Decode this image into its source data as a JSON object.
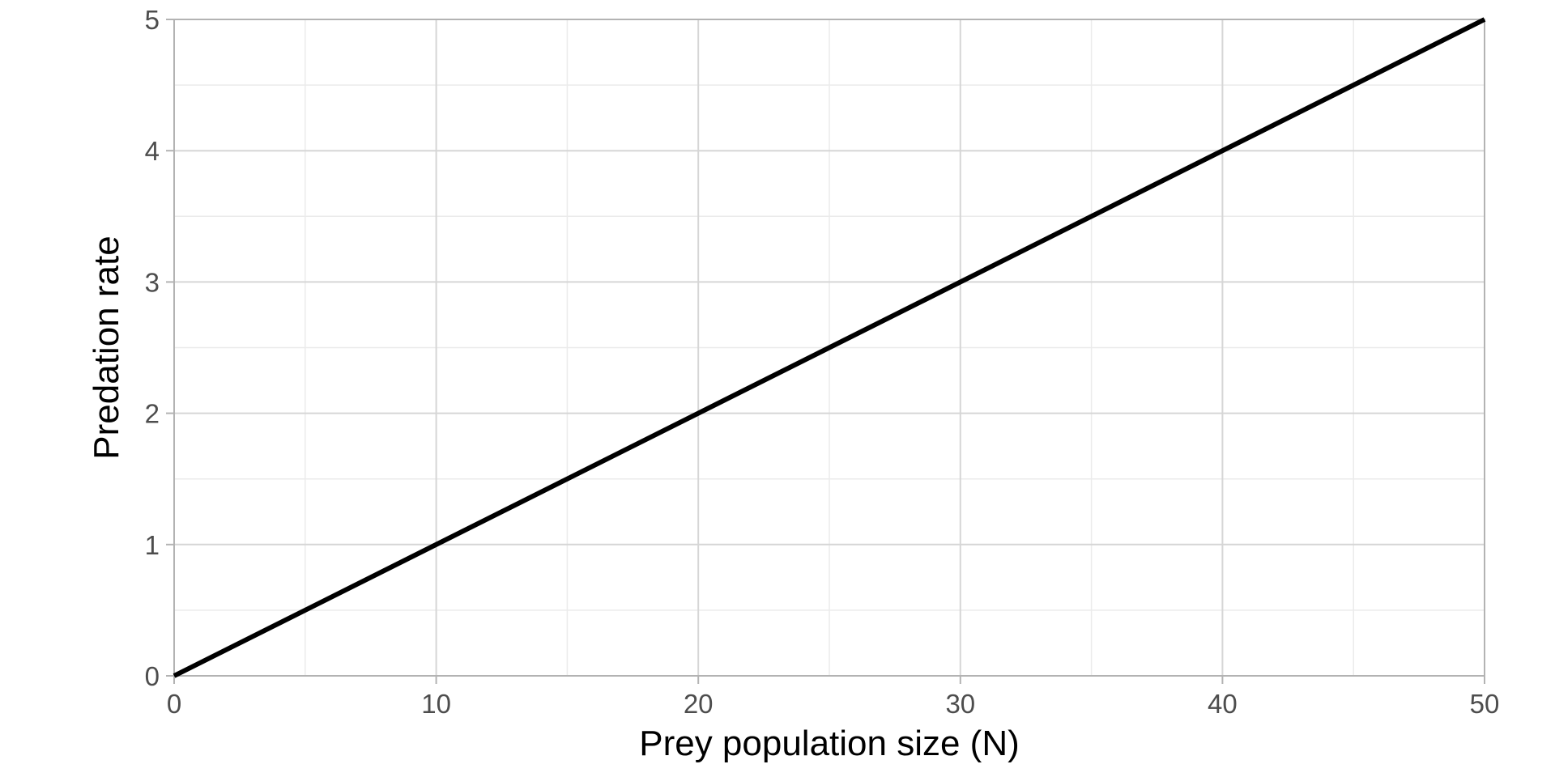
{
  "chart_data": {
    "type": "line",
    "xlabel": "Prey population size (N)",
    "ylabel": "Predation rate",
    "xlim": [
      0,
      50
    ],
    "ylim": [
      0,
      5
    ],
    "x_ticks": [
      "0",
      "10",
      "20",
      "30",
      "40",
      "50"
    ],
    "y_ticks": [
      "0",
      "1",
      "2",
      "3",
      "4",
      "5"
    ],
    "grid": true,
    "series": [
      {
        "x": [
          0,
          50
        ],
        "y": [
          0,
          5
        ],
        "color": "#000000"
      }
    ]
  }
}
